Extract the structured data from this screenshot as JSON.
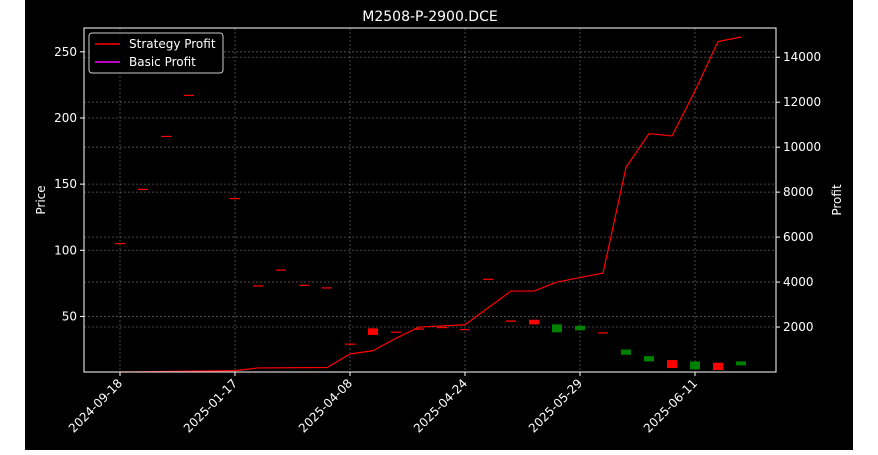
{
  "chart_data": {
    "type": "candlestick+line",
    "title": "M2508-P-2900.DCE",
    "xlabel": "",
    "ylabel_left": "Price",
    "ylabel_right": "Profit",
    "x_tick_labels": [
      "2024-09-18",
      "2025-01-17",
      "2025-04-08",
      "2025-04-24",
      "2025-05-29",
      "2025-06-11"
    ],
    "x_tick_index": [
      0,
      5,
      10,
      15,
      20,
      25
    ],
    "n_points": 28,
    "ylim_left": [
      8,
      268
    ],
    "ylim_right": [
      0,
      15300
    ],
    "yticks_left": [
      50,
      100,
      150,
      200,
      250
    ],
    "yticks_right": [
      2000,
      4000,
      6000,
      8000,
      10000,
      12000,
      14000
    ],
    "grid": true,
    "legend": {
      "placement": "top-left",
      "entries": [
        {
          "label": "Strategy Profit",
          "color": "#ff0000"
        },
        {
          "label": "Basic Profit",
          "color": "#ff00ff"
        }
      ]
    },
    "candles": [
      {
        "i": 0,
        "open": 105,
        "close": 105.5
      },
      {
        "i": 1,
        "open": 146,
        "close": 146.5
      },
      {
        "i": 2,
        "open": 186,
        "close": 186.5
      },
      {
        "i": 3,
        "open": 217,
        "close": 217.5
      },
      {
        "i": 5,
        "open": 139,
        "close": 139.5
      },
      {
        "i": 6,
        "open": 73,
        "close": 73.5
      },
      {
        "i": 7,
        "open": 85,
        "close": 85.5
      },
      {
        "i": 8,
        "open": 73.5,
        "close": 74
      },
      {
        "i": 9,
        "open": 71.5,
        "close": 72
      },
      {
        "i": 10,
        "open": 29,
        "close": 29.5
      },
      {
        "i": 11,
        "open": 41,
        "close": 36
      },
      {
        "i": 12,
        "open": 38,
        "close": 38.5
      },
      {
        "i": 13,
        "open": 40,
        "close": 41
      },
      {
        "i": 14,
        "open": 41.5,
        "close": 42
      },
      {
        "i": 15,
        "open": 40,
        "close": 40.5
      },
      {
        "i": 16,
        "open": 78,
        "close": 78.5
      },
      {
        "i": 17,
        "open": 47,
        "close": 46
      },
      {
        "i": 18,
        "open": 47.5,
        "close": 44
      },
      {
        "i": 19,
        "open": 38,
        "close": 44
      },
      {
        "i": 20,
        "open": 39.5,
        "close": 43
      },
      {
        "i": 21,
        "open": 37.5,
        "close": 38
      },
      {
        "i": 22,
        "open": 21,
        "close": 25
      },
      {
        "i": 23,
        "open": 16,
        "close": 20
      },
      {
        "i": 24,
        "open": 17,
        "close": 11
      },
      {
        "i": 25,
        "open": 10,
        "close": 16
      },
      {
        "i": 26,
        "open": 15,
        "close": 9.5
      },
      {
        "i": 27,
        "open": 13,
        "close": 16
      }
    ],
    "series": [
      {
        "name": "Strategy Profit",
        "color": "#ff0000",
        "x": [
          0,
          5,
          6,
          9,
          10,
          11,
          12,
          13,
          15,
          17,
          18,
          19,
          20,
          21,
          22,
          23,
          24,
          25,
          26,
          27
        ],
        "values": [
          0,
          60,
          180,
          200,
          800,
          950,
          1500,
          2000,
          2100,
          3600,
          3600,
          4000,
          4200,
          4400,
          9100,
          10600,
          10500,
          12500,
          14700,
          14900
        ]
      },
      {
        "name": "Basic Profit",
        "color": "#ff00ff",
        "x": [],
        "values": []
      }
    ]
  }
}
